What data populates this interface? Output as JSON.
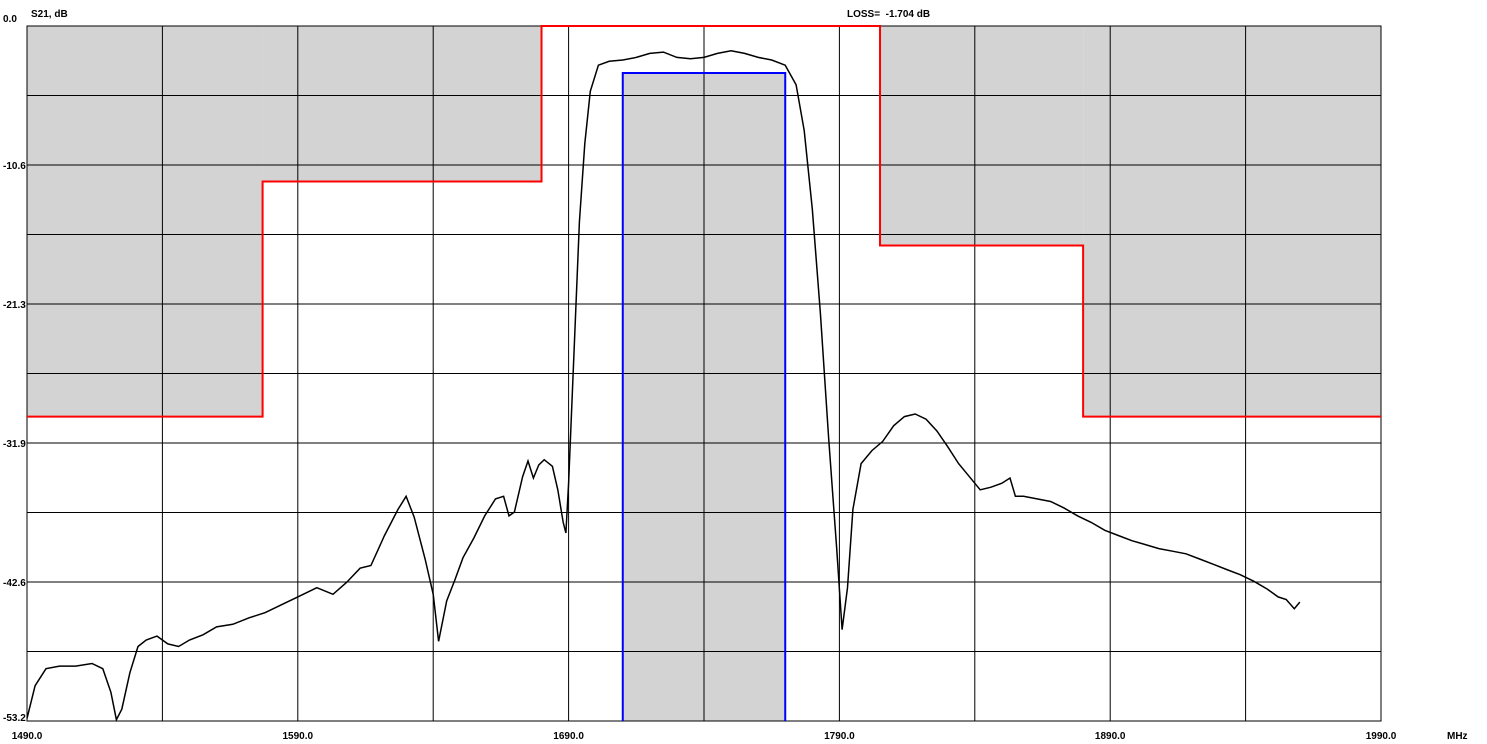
{
  "chart_data": {
    "type": "line",
    "ylabel": "S21, dB",
    "xunit": "MHz",
    "readout": "LOSS=  -1.704 dB",
    "xlim": [
      1490,
      1990
    ],
    "ylim": [
      -53.2,
      0
    ],
    "x_ticks": [
      "1490.0",
      "1590.0",
      "1690.0",
      "1790.0",
      "1890.0",
      "1990.0"
    ],
    "y_ticks": [
      "0.0",
      "-10.6",
      "-21.3",
      "-31.9",
      "-42.6",
      "-53.2"
    ],
    "x_grid_step": 50,
    "y_grid_divisions": 10,
    "grid": true,
    "colors": {
      "grid": "#000000",
      "reject_fill": "#d3d3d3",
      "reject_mask": "#ff0000",
      "pass_mask": "#0000ff",
      "trace": "#000000"
    },
    "rejection_mask": [
      [
        1490,
        -29.9
      ],
      [
        1577,
        -29.9
      ],
      [
        1577,
        -11.9
      ],
      [
        1680,
        -11.9
      ],
      [
        1680,
        0
      ],
      [
        1805,
        0
      ],
      [
        1805,
        -16.8
      ],
      [
        1880,
        -16.8
      ],
      [
        1880,
        -29.9
      ],
      [
        1990,
        -29.9
      ]
    ],
    "passband_mask": {
      "x1": 1710,
      "x2": 1770,
      "level": -3.6
    },
    "series": [
      {
        "values": [
          [
            1490,
            -53.0
          ],
          [
            1493,
            -50.5
          ],
          [
            1497,
            -49.2
          ],
          [
            1502,
            -49.0
          ],
          [
            1508,
            -49.0
          ],
          [
            1514,
            -48.8
          ],
          [
            1518,
            -49.2
          ],
          [
            1521,
            -51.0
          ],
          [
            1523,
            -53.1
          ],
          [
            1525,
            -52.3
          ],
          [
            1528,
            -49.5
          ],
          [
            1531,
            -47.5
          ],
          [
            1534,
            -47.0
          ],
          [
            1538,
            -46.7
          ],
          [
            1542,
            -47.3
          ],
          [
            1546,
            -47.5
          ],
          [
            1550,
            -47.0
          ],
          [
            1555,
            -46.6
          ],
          [
            1560,
            -46.0
          ],
          [
            1566,
            -45.8
          ],
          [
            1572,
            -45.3
          ],
          [
            1578,
            -44.9
          ],
          [
            1584,
            -44.3
          ],
          [
            1590,
            -43.7
          ],
          [
            1597,
            -43.0
          ],
          [
            1603,
            -43.5
          ],
          [
            1608,
            -42.6
          ],
          [
            1613,
            -41.5
          ],
          [
            1617,
            -41.3
          ],
          [
            1622,
            -39.0
          ],
          [
            1627,
            -37.0
          ],
          [
            1630,
            -36.0
          ],
          [
            1633,
            -37.6
          ],
          [
            1637,
            -40.8
          ],
          [
            1640,
            -43.5
          ],
          [
            1642,
            -47.1
          ],
          [
            1645,
            -44.0
          ],
          [
            1648,
            -42.4
          ],
          [
            1651,
            -40.7
          ],
          [
            1655,
            -39.2
          ],
          [
            1659,
            -37.5
          ],
          [
            1663,
            -36.2
          ],
          [
            1666,
            -36.0
          ],
          [
            1668,
            -37.5
          ],
          [
            1670,
            -37.2
          ],
          [
            1673,
            -34.5
          ],
          [
            1675,
            -33.3
          ],
          [
            1677,
            -34.6
          ],
          [
            1679,
            -33.6
          ],
          [
            1681,
            -33.2
          ],
          [
            1684,
            -33.7
          ],
          [
            1686,
            -35.5
          ],
          [
            1688,
            -38.0
          ],
          [
            1689,
            -38.8
          ],
          [
            1690,
            -35.0
          ],
          [
            1692,
            -25.0
          ],
          [
            1694,
            -15.0
          ],
          [
            1696,
            -9.0
          ],
          [
            1698,
            -5.0
          ],
          [
            1701,
            -3.0
          ],
          [
            1705,
            -2.7
          ],
          [
            1710,
            -2.6
          ],
          [
            1715,
            -2.4
          ],
          [
            1720,
            -2.1
          ],
          [
            1725,
            -2.0
          ],
          [
            1730,
            -2.4
          ],
          [
            1735,
            -2.5
          ],
          [
            1740,
            -2.4
          ],
          [
            1745,
            -2.1
          ],
          [
            1750,
            -1.9
          ],
          [
            1755,
            -2.1
          ],
          [
            1760,
            -2.4
          ],
          [
            1765,
            -2.6
          ],
          [
            1770,
            -3.0
          ],
          [
            1774,
            -4.5
          ],
          [
            1777,
            -8.0
          ],
          [
            1780,
            -14.0
          ],
          [
            1783,
            -22.0
          ],
          [
            1786,
            -31.5
          ],
          [
            1789,
            -40.0
          ],
          [
            1791,
            -46.2
          ],
          [
            1793,
            -43.0
          ],
          [
            1795,
            -37.0
          ],
          [
            1798,
            -33.5
          ],
          [
            1802,
            -32.5
          ],
          [
            1806,
            -31.8
          ],
          [
            1810,
            -30.6
          ],
          [
            1814,
            -29.9
          ],
          [
            1818,
            -29.7
          ],
          [
            1822,
            -30.1
          ],
          [
            1826,
            -31.0
          ],
          [
            1830,
            -32.2
          ],
          [
            1834,
            -33.5
          ],
          [
            1838,
            -34.5
          ],
          [
            1842,
            -35.5
          ],
          [
            1846,
            -35.3
          ],
          [
            1850,
            -35.0
          ],
          [
            1853,
            -34.6
          ],
          [
            1855,
            -36.0
          ],
          [
            1858,
            -36.0
          ],
          [
            1863,
            -36.2
          ],
          [
            1868,
            -36.4
          ],
          [
            1873,
            -36.9
          ],
          [
            1878,
            -37.5
          ],
          [
            1883,
            -38.0
          ],
          [
            1888,
            -38.6
          ],
          [
            1893,
            -39.0
          ],
          [
            1898,
            -39.4
          ],
          [
            1903,
            -39.7
          ],
          [
            1908,
            -40.0
          ],
          [
            1913,
            -40.2
          ],
          [
            1918,
            -40.4
          ],
          [
            1923,
            -40.8
          ],
          [
            1928,
            -41.2
          ],
          [
            1933,
            -41.6
          ],
          [
            1938,
            -42.0
          ],
          [
            1943,
            -42.5
          ],
          [
            1948,
            -43.1
          ],
          [
            1952,
            -43.7
          ],
          [
            1955,
            -43.9
          ],
          [
            1958,
            -44.6
          ],
          [
            1960,
            -44.1
          ]
        ]
      }
    ]
  }
}
